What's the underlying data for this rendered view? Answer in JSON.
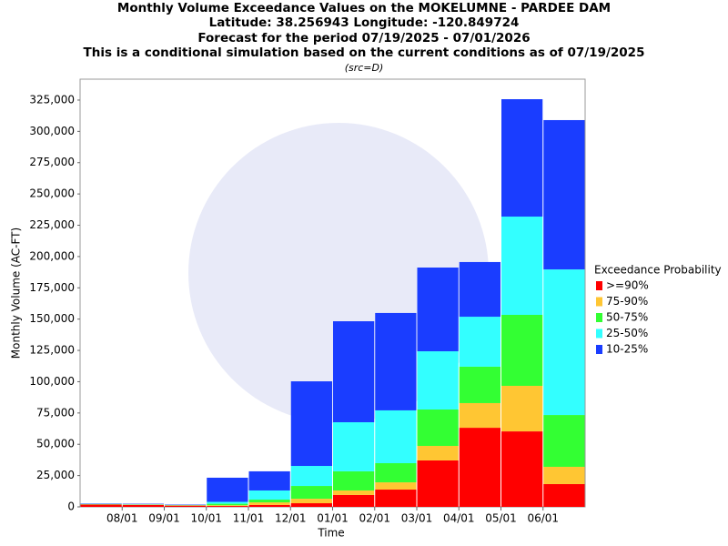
{
  "chart_data": {
    "type": "stacked_bar",
    "title": "Monthly Volume Exceedance Values on the MOKELUMNE - PARDEE DAM",
    "subtitle_lines": [
      "Latitude: 38.256943 Longitude: -120.849724",
      "Forecast for the period 07/19/2025 - 07/01/2026",
      "This is a conditional simulation based on the current conditions as of 07/19/2025"
    ],
    "source_note": "(src=D)",
    "x_label": "Time",
    "y_label": "Monthly Volume (AC-FT)",
    "xtick_labels": [
      "08/01",
      "09/01",
      "10/01",
      "11/01",
      "12/01",
      "01/01",
      "02/01",
      "03/01",
      "04/01",
      "05/01",
      "06/01"
    ],
    "legend_title": "Exceedance Probability",
    "series": [
      {
        "name": ">=90%",
        "color": "#ff0000",
        "values": [
          1800,
          1600,
          1000,
          700,
          1500,
          2900,
          9500,
          13800,
          37100,
          63200,
          60300,
          18200
        ]
      },
      {
        "name": "75-90%",
        "color": "#ffc633",
        "values": [
          200,
          200,
          200,
          600,
          2100,
          3600,
          3600,
          5800,
          11600,
          19700,
          36400,
          13800
        ]
      },
      {
        "name": "50-75%",
        "color": "#33ff33",
        "values": [
          200,
          200,
          200,
          1200,
          2200,
          10200,
          15300,
          15300,
          29100,
          29100,
          56700,
          41400
        ]
      },
      {
        "name": "25-50%",
        "color": "#33ffff",
        "values": [
          200,
          200,
          200,
          1500,
          7300,
          16000,
          39200,
          42200,
          46500,
          39900,
          78500,
          116300
        ]
      },
      {
        "name": "10-25%",
        "color": "#1a3dff",
        "values": [
          300,
          300,
          300,
          19300,
          15300,
          67600,
          80700,
          77800,
          66900,
          43700,
          93800,
          119300
        ]
      }
    ],
    "ylim": [
      0,
      341700
    ],
    "yticks": [
      0,
      {
        "value": 25000,
        "label": "25,000"
      },
      {
        "value": 50000,
        "label": "50,000"
      },
      {
        "value": 75000,
        "label": "75,000"
      },
      {
        "value": 100000,
        "label": "100,000"
      },
      {
        "value": 125000,
        "label": "125,000"
      },
      {
        "value": 150000,
        "label": "150,000"
      },
      {
        "value": 175000,
        "label": "175,000"
      },
      {
        "value": 200000,
        "label": "200,000"
      },
      {
        "value": 225000,
        "label": "225,000"
      },
      {
        "value": 250000,
        "label": "250,000"
      },
      {
        "value": 275000,
        "label": "275,000"
      },
      {
        "value": 300000,
        "label": "300,000"
      },
      {
        "value": 325000,
        "label": "325,000"
      }
    ]
  }
}
